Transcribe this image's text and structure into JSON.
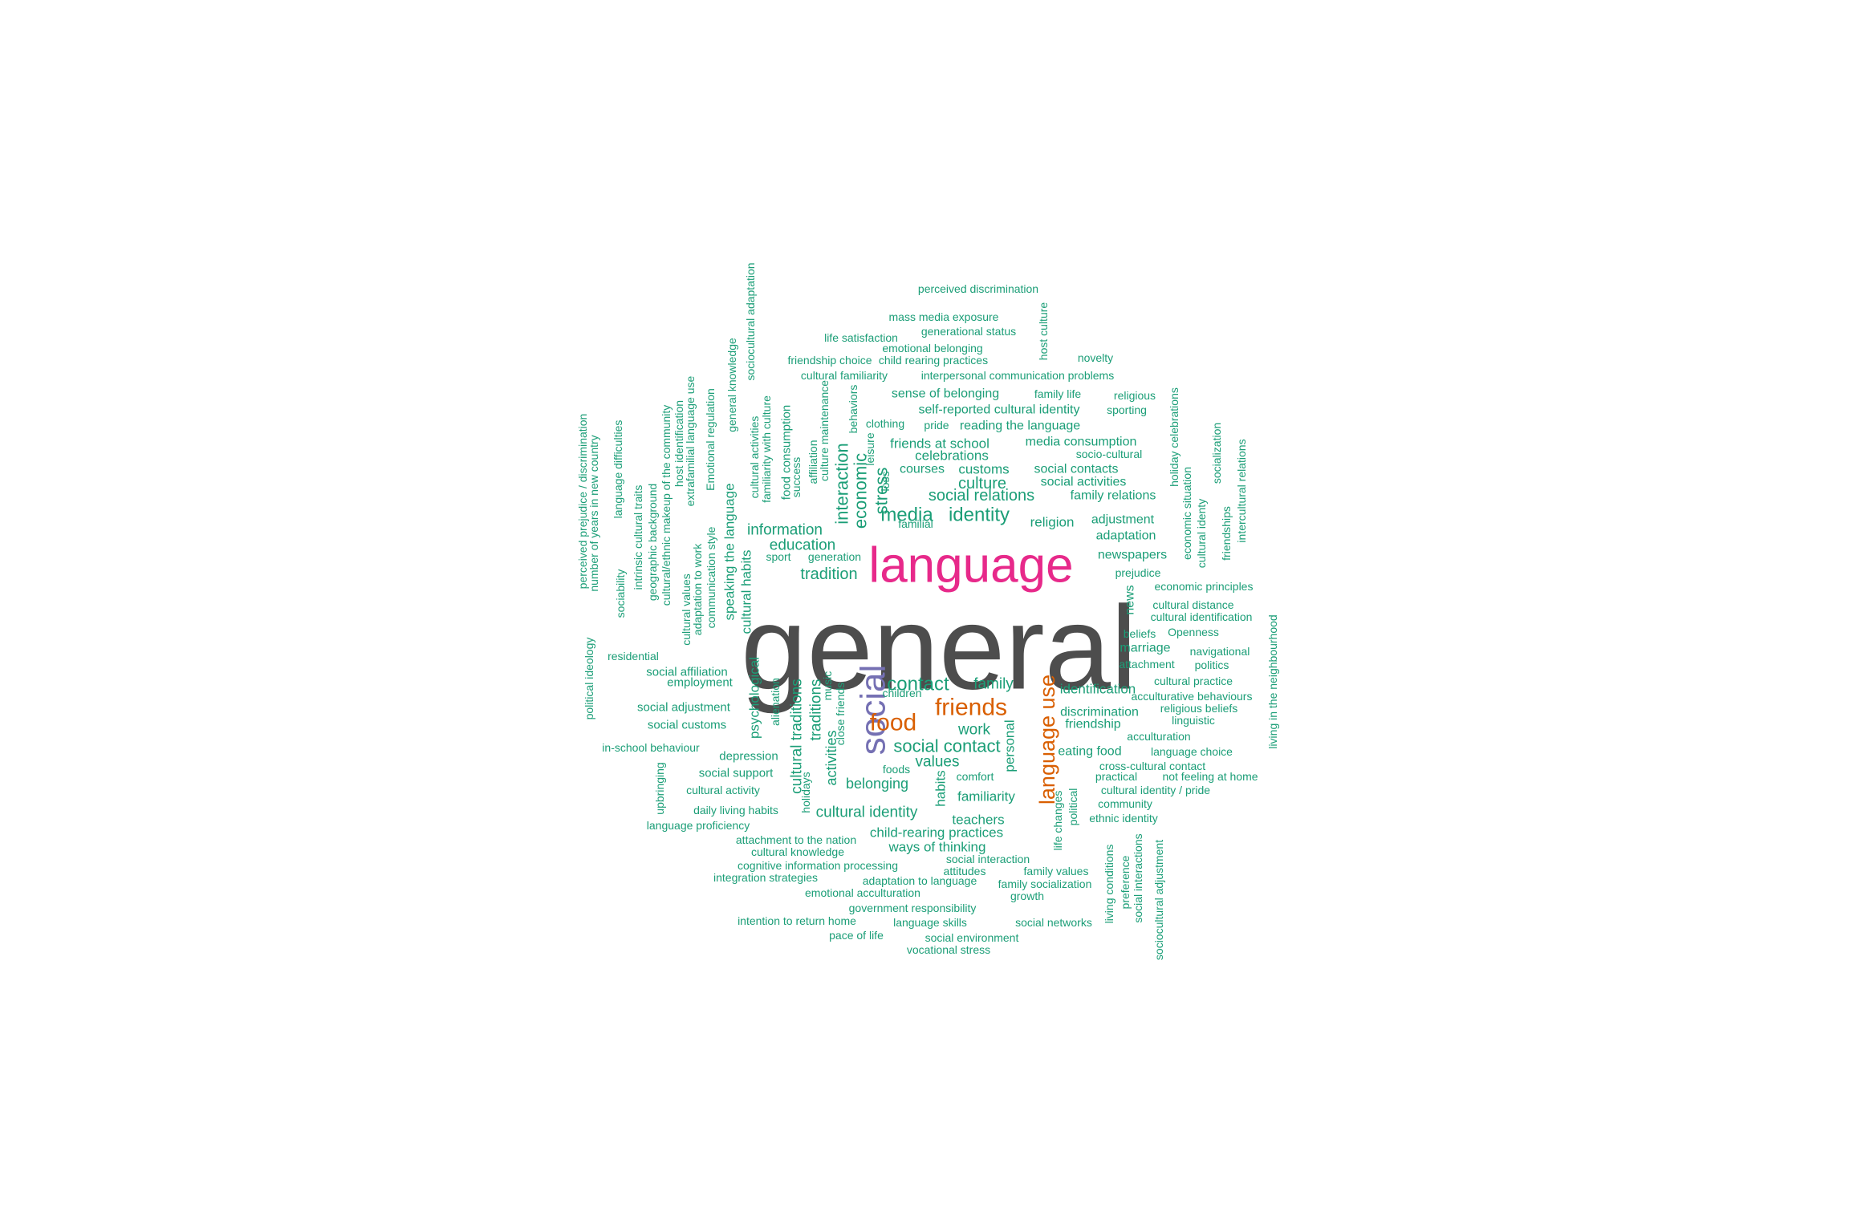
{
  "palette": {
    "gray": "#4d4d4d",
    "magenta": "#e7298a",
    "purple": "#7570b3",
    "orange": "#d95f02",
    "teal": "#1b9e77"
  },
  "words": [
    {
      "text": "general",
      "color": "gray",
      "weight": 100
    },
    {
      "text": "language",
      "color": "magenta",
      "weight": 55
    },
    {
      "text": "social",
      "color": "purple",
      "weight": 38
    },
    {
      "text": "language use",
      "color": "orange",
      "weight": 30
    },
    {
      "text": "food",
      "color": "orange",
      "weight": 26
    },
    {
      "text": "friends",
      "color": "orange",
      "weight": 26
    },
    {
      "text": "media",
      "color": "teal",
      "weight": 22
    },
    {
      "text": "identity",
      "color": "teal",
      "weight": 22
    },
    {
      "text": "contact",
      "color": "teal",
      "weight": 22
    },
    {
      "text": "social contact",
      "color": "teal",
      "weight": 20
    },
    {
      "text": "interaction",
      "color": "teal",
      "weight": 20
    },
    {
      "text": "economic",
      "color": "teal",
      "weight": 20
    },
    {
      "text": "stress",
      "color": "teal",
      "weight": 20
    },
    {
      "text": "tradition",
      "color": "teal",
      "weight": 18
    },
    {
      "text": "social relations",
      "color": "teal",
      "weight": 18
    },
    {
      "text": "culture",
      "color": "teal",
      "weight": 18
    },
    {
      "text": "cultural traditions",
      "color": "teal",
      "weight": 18
    },
    {
      "text": "traditions",
      "color": "teal",
      "weight": 18
    },
    {
      "text": "cultural identity",
      "color": "teal",
      "weight": 18
    },
    {
      "text": "family",
      "color": "teal",
      "weight": 18
    },
    {
      "text": "work",
      "color": "teal",
      "weight": 17
    },
    {
      "text": "values",
      "color": "teal",
      "weight": 17
    },
    {
      "text": "information",
      "color": "teal",
      "weight": 17
    },
    {
      "text": "education",
      "color": "teal",
      "weight": 17
    },
    {
      "text": "activities",
      "color": "teal",
      "weight": 17
    },
    {
      "text": "belonging",
      "color": "teal",
      "weight": 16
    },
    {
      "text": "cultural habits",
      "color": "teal",
      "weight": 16
    },
    {
      "text": "speaking the language",
      "color": "teal",
      "weight": 16
    },
    {
      "text": "psychological",
      "color": "teal",
      "weight": 16
    },
    {
      "text": "personal",
      "color": "teal",
      "weight": 16
    },
    {
      "text": "identification",
      "color": "teal",
      "weight": 16
    },
    {
      "text": "habits",
      "color": "teal",
      "weight": 16
    },
    {
      "text": "religion",
      "color": "teal",
      "weight": 16
    },
    {
      "text": "customs",
      "color": "teal",
      "weight": 16
    },
    {
      "text": "celebrations",
      "color": "teal",
      "weight": 16
    },
    {
      "text": "friends at school",
      "color": "teal",
      "weight": 16
    },
    {
      "text": "familiarity",
      "color": "teal",
      "weight": 16
    },
    {
      "text": "teachers",
      "color": "teal",
      "weight": 16
    },
    {
      "text": "ways of thinking",
      "color": "teal",
      "weight": 16
    },
    {
      "text": "child-rearing practices",
      "color": "teal",
      "weight": 16
    },
    {
      "text": "discrimination",
      "color": "teal",
      "weight": 15
    },
    {
      "text": "friendship",
      "color": "teal",
      "weight": 15
    },
    {
      "text": "eating food",
      "color": "teal",
      "weight": 15
    },
    {
      "text": "marriage",
      "color": "teal",
      "weight": 15
    },
    {
      "text": "news",
      "color": "teal",
      "weight": 15
    },
    {
      "text": "newspapers",
      "color": "teal",
      "weight": 15
    },
    {
      "text": "adaptation",
      "color": "teal",
      "weight": 15
    },
    {
      "text": "adjustment",
      "color": "teal",
      "weight": 15
    },
    {
      "text": "family relations",
      "color": "teal",
      "weight": 15
    },
    {
      "text": "social activities",
      "color": "teal",
      "weight": 15
    },
    {
      "text": "social contacts",
      "color": "teal",
      "weight": 15
    },
    {
      "text": "media consumption",
      "color": "teal",
      "weight": 15
    },
    {
      "text": "reading the language",
      "color": "teal",
      "weight": 15
    },
    {
      "text": "self-reported cultural identity",
      "color": "teal",
      "weight": 15
    },
    {
      "text": "sense of belonging",
      "color": "teal",
      "weight": 15
    },
    {
      "text": "courses",
      "color": "teal",
      "weight": 15
    },
    {
      "text": "food consumption",
      "color": "teal",
      "weight": 14
    },
    {
      "text": "depression",
      "color": "teal",
      "weight": 14
    },
    {
      "text": "social support",
      "color": "teal",
      "weight": 14
    },
    {
      "text": "social affiliation",
      "color": "teal",
      "weight": 14
    },
    {
      "text": "social adjustment",
      "color": "teal",
      "weight": 14
    },
    {
      "text": "social customs",
      "color": "teal",
      "weight": 14
    },
    {
      "text": "employment",
      "color": "teal",
      "weight": 14
    },
    {
      "text": "perceived discrimination",
      "color": "teal",
      "weight": 13
    },
    {
      "text": "mass media exposure",
      "color": "teal",
      "weight": 13
    },
    {
      "text": "generational status",
      "color": "teal",
      "weight": 13
    },
    {
      "text": "life satisfaction",
      "color": "teal",
      "weight": 13
    },
    {
      "text": "emotional belonging",
      "color": "teal",
      "weight": 13
    },
    {
      "text": "friendship choice",
      "color": "teal",
      "weight": 13
    },
    {
      "text": "child rearing practices",
      "color": "teal",
      "weight": 13
    },
    {
      "text": "cultural familiarity",
      "color": "teal",
      "weight": 13
    },
    {
      "text": "interpersonal communication problems",
      "color": "teal",
      "weight": 13
    },
    {
      "text": "novelty",
      "color": "teal",
      "weight": 13
    },
    {
      "text": "family life",
      "color": "teal",
      "weight": 13
    },
    {
      "text": "religious",
      "color": "teal",
      "weight": 13
    },
    {
      "text": "sporting",
      "color": "teal",
      "weight": 13
    },
    {
      "text": "clothing",
      "color": "teal",
      "weight": 13
    },
    {
      "text": "pride",
      "color": "teal",
      "weight": 13
    },
    {
      "text": "socio-cultural",
      "color": "teal",
      "weight": 13
    },
    {
      "text": "host culture",
      "color": "teal",
      "weight": 13
    },
    {
      "text": "sociocultural adaptation",
      "color": "teal",
      "weight": 13
    },
    {
      "text": "general knowledge",
      "color": "teal",
      "weight": 13
    },
    {
      "text": "extrafamilial language use",
      "color": "teal",
      "weight": 13
    },
    {
      "text": "host identification",
      "color": "teal",
      "weight": 13
    },
    {
      "text": "Emotional regulation",
      "color": "teal",
      "weight": 13
    },
    {
      "text": "cultural/ethnic makeup of the community",
      "color": "teal",
      "weight": 13
    },
    {
      "text": "geographic background",
      "color": "teal",
      "weight": 13
    },
    {
      "text": "intrinsic cultural traits",
      "color": "teal",
      "weight": 13
    },
    {
      "text": "language difficulties",
      "color": "teal",
      "weight": 13
    },
    {
      "text": "sociability",
      "color": "teal",
      "weight": 13
    },
    {
      "text": "number of years in new country",
      "color": "teal",
      "weight": 13
    },
    {
      "text": "perceived prejudice / discrimination",
      "color": "teal",
      "weight": 13
    },
    {
      "text": "political ideology",
      "color": "teal",
      "weight": 13
    },
    {
      "text": "residential",
      "color": "teal",
      "weight": 13
    },
    {
      "text": "cultural values",
      "color": "teal",
      "weight": 13
    },
    {
      "text": "adaptation to work",
      "color": "teal",
      "weight": 13
    },
    {
      "text": "communication style",
      "color": "teal",
      "weight": 13
    },
    {
      "text": "cultural activities",
      "color": "teal",
      "weight": 13
    },
    {
      "text": "familiarity with culture",
      "color": "teal",
      "weight": 13
    },
    {
      "text": "success",
      "color": "teal",
      "weight": 13
    },
    {
      "text": "affiliation",
      "color": "teal",
      "weight": 13
    },
    {
      "text": "culture maintenance",
      "color": "teal",
      "weight": 13
    },
    {
      "text": "behaviors",
      "color": "teal",
      "weight": 13
    },
    {
      "text": "leisure",
      "color": "teal",
      "weight": 13
    },
    {
      "text": "loss",
      "color": "teal",
      "weight": 13
    },
    {
      "text": "familial",
      "color": "teal",
      "weight": 13
    },
    {
      "text": "sport",
      "color": "teal",
      "weight": 13
    },
    {
      "text": "generation",
      "color": "teal",
      "weight": 13
    },
    {
      "text": "prejudice",
      "color": "teal",
      "weight": 13
    },
    {
      "text": "economic principles",
      "color": "teal",
      "weight": 13
    },
    {
      "text": "cultural distance",
      "color": "teal",
      "weight": 13
    },
    {
      "text": "cultural identification",
      "color": "teal",
      "weight": 13
    },
    {
      "text": "beliefs",
      "color": "teal",
      "weight": 13
    },
    {
      "text": "Openness",
      "color": "teal",
      "weight": 13
    },
    {
      "text": "navigational",
      "color": "teal",
      "weight": 13
    },
    {
      "text": "attachment",
      "color": "teal",
      "weight": 13
    },
    {
      "text": "politics",
      "color": "teal",
      "weight": 13
    },
    {
      "text": "cultural practice",
      "color": "teal",
      "weight": 13
    },
    {
      "text": "acculturative behaviours",
      "color": "teal",
      "weight": 13
    },
    {
      "text": "religious beliefs",
      "color": "teal",
      "weight": 13
    },
    {
      "text": "linguistic",
      "color": "teal",
      "weight": 13
    },
    {
      "text": "acculturation",
      "color": "teal",
      "weight": 13
    },
    {
      "text": "language choice",
      "color": "teal",
      "weight": 13
    },
    {
      "text": "cross-cultural contact",
      "color": "teal",
      "weight": 13
    },
    {
      "text": "practical",
      "color": "teal",
      "weight": 13
    },
    {
      "text": "not feeling at home",
      "color": "teal",
      "weight": 13
    },
    {
      "text": "cultural identity / pride",
      "color": "teal",
      "weight": 13
    },
    {
      "text": "community",
      "color": "teal",
      "weight": 13
    },
    {
      "text": "ethnic identity",
      "color": "teal",
      "weight": 13
    },
    {
      "text": "holiday celebrations",
      "color": "teal",
      "weight": 13
    },
    {
      "text": "economic situation",
      "color": "teal",
      "weight": 13
    },
    {
      "text": "cultural identy",
      "color": "teal",
      "weight": 13
    },
    {
      "text": "socialization",
      "color": "teal",
      "weight": 13
    },
    {
      "text": "friendships",
      "color": "teal",
      "weight": 13
    },
    {
      "text": "intercultural relations",
      "color": "teal",
      "weight": 13
    },
    {
      "text": "living in the neighbourhood",
      "color": "teal",
      "weight": 13
    },
    {
      "text": "in-school behaviour",
      "color": "teal",
      "weight": 13
    },
    {
      "text": "upbringing",
      "color": "teal",
      "weight": 13
    },
    {
      "text": "cultural activity",
      "color": "teal",
      "weight": 13
    },
    {
      "text": "daily living habits",
      "color": "teal",
      "weight": 13
    },
    {
      "text": "language proficiency",
      "color": "teal",
      "weight": 13
    },
    {
      "text": "alienation",
      "color": "teal",
      "weight": 13
    },
    {
      "text": "holidays",
      "color": "teal",
      "weight": 13
    },
    {
      "text": "music",
      "color": "teal",
      "weight": 13
    },
    {
      "text": "close friends",
      "color": "teal",
      "weight": 13
    },
    {
      "text": "children",
      "color": "teal",
      "weight": 13
    },
    {
      "text": "foods",
      "color": "teal",
      "weight": 13
    },
    {
      "text": "comfort",
      "color": "teal",
      "weight": 13
    },
    {
      "text": "political",
      "color": "teal",
      "weight": 13
    },
    {
      "text": "life changes",
      "color": "teal",
      "weight": 13
    },
    {
      "text": "attachment to the nation",
      "color": "teal",
      "weight": 13
    },
    {
      "text": "cultural knowledge",
      "color": "teal",
      "weight": 13
    },
    {
      "text": "cognitive information processing",
      "color": "teal",
      "weight": 13
    },
    {
      "text": "integration strategies",
      "color": "teal",
      "weight": 13
    },
    {
      "text": "emotional acculturation",
      "color": "teal",
      "weight": 13
    },
    {
      "text": "social interaction",
      "color": "teal",
      "weight": 13
    },
    {
      "text": "attitudes",
      "color": "teal",
      "weight": 13
    },
    {
      "text": "adaptation to language",
      "color": "teal",
      "weight": 13
    },
    {
      "text": "family values",
      "color": "teal",
      "weight": 13
    },
    {
      "text": "family socialization",
      "color": "teal",
      "weight": 13
    },
    {
      "text": "growth",
      "color": "teal",
      "weight": 13
    },
    {
      "text": "government responsibility",
      "color": "teal",
      "weight": 13
    },
    {
      "text": "intention to return home",
      "color": "teal",
      "weight": 13
    },
    {
      "text": "language skills",
      "color": "teal",
      "weight": 13
    },
    {
      "text": "social networks",
      "color": "teal",
      "weight": 13
    },
    {
      "text": "pace of life",
      "color": "teal",
      "weight": 13
    },
    {
      "text": "social environment",
      "color": "teal",
      "weight": 13
    },
    {
      "text": "vocational stress",
      "color": "teal",
      "weight": 13
    },
    {
      "text": "living conditions",
      "color": "teal",
      "weight": 13
    },
    {
      "text": "preference",
      "color": "teal",
      "weight": 13
    },
    {
      "text": "social interactions",
      "color": "teal",
      "weight": 13
    },
    {
      "text": "sociocultural adjustment",
      "color": "teal",
      "weight": 13
    }
  ]
}
